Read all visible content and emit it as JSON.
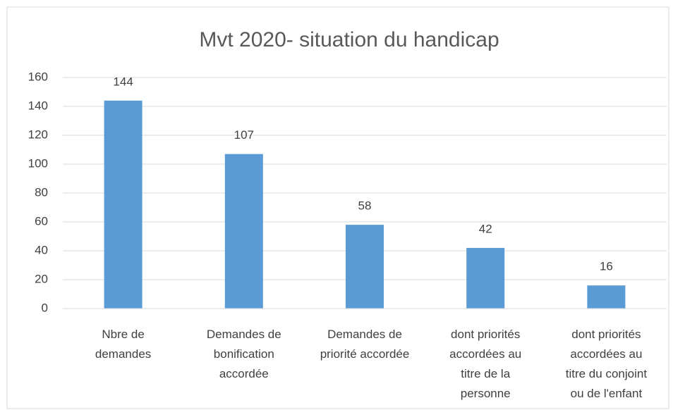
{
  "chart_data": {
    "type": "bar",
    "title": "Mvt 2020- situation du handicap",
    "categories": [
      [
        "Nbre de",
        "demandes"
      ],
      [
        "Demandes de",
        "bonification",
        "accordée"
      ],
      [
        "Demandes de",
        "priorité accordée"
      ],
      [
        "dont priorités",
        "accordées au",
        "titre de la",
        "personne"
      ],
      [
        "dont priorités",
        "accordées au",
        "titre du conjoint",
        "ou de l'enfant"
      ]
    ],
    "values": [
      144,
      107,
      58,
      42,
      16
    ],
    "color": "#5b9bd5",
    "ylim": [
      0,
      160
    ],
    "yticks": [
      0,
      20,
      40,
      60,
      80,
      100,
      120,
      140,
      160
    ],
    "grid": true
  }
}
